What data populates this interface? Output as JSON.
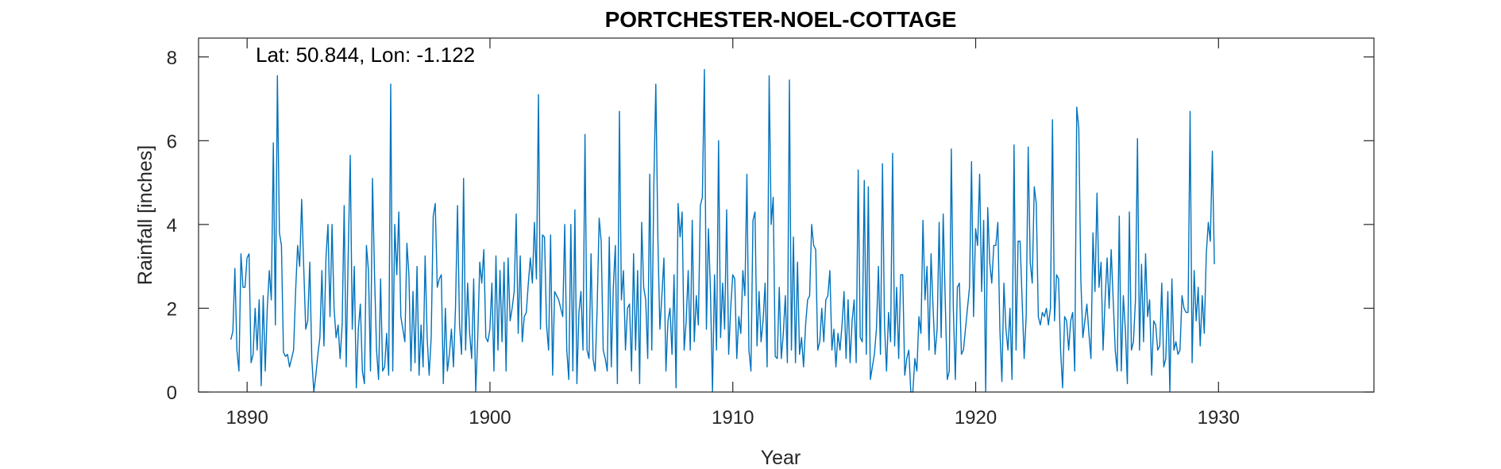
{
  "chart_data": {
    "type": "line",
    "title": "PORTCHESTER-NOEL-COTTAGE",
    "annotation": "Lat: 50.844, Lon: -1.122",
    "xlabel": "Year",
    "ylabel": "Rainfall [inches]",
    "xlim": [
      1888.0,
      1936.4
    ],
    "ylim": [
      0,
      8.45
    ],
    "x_ticks": [
      1890,
      1900,
      1910,
      1920,
      1930
    ],
    "y_ticks": [
      0,
      2,
      4,
      6,
      8
    ],
    "grid": false,
    "line_color": "#0072BD",
    "series": [
      {
        "x_start": 1889.33,
        "x_step_months": 1,
        "values": [
          1.25,
          1.45,
          2.95,
          1.0,
          0.5,
          3.3,
          2.5,
          2.5,
          3.2,
          3.3,
          0.7,
          0.9,
          2.0,
          1.0,
          2.2,
          0.15,
          2.3,
          0.5,
          2.0,
          2.9,
          2.2,
          5.95,
          1.6,
          7.55,
          3.8,
          3.5,
          0.95,
          0.85,
          0.9,
          0.6,
          0.8,
          1.0,
          2.4,
          3.5,
          3.0,
          4.6,
          3.0,
          1.5,
          1.7,
          3.1,
          0.8,
          0.0,
          0.4,
          0.9,
          1.3,
          2.9,
          1.1,
          3.2,
          4.0,
          1.8,
          4.0,
          2.0,
          1.3,
          1.6,
          0.8,
          1.6,
          4.45,
          0.6,
          3.3,
          5.65,
          1.5,
          3.0,
          0.1,
          1.5,
          2.1,
          0.5,
          0.2,
          3.5,
          2.9,
          0.5,
          5.1,
          2.8,
          1.0,
          0.3,
          2.7,
          0.5,
          0.6,
          1.4,
          0.4,
          7.35,
          0.5,
          4.0,
          2.8,
          4.3,
          1.8,
          1.5,
          1.2,
          3.55,
          2.8,
          0.5,
          2.4,
          0.7,
          3.0,
          0.4,
          1.6,
          0.6,
          3.25,
          1.3,
          0.4,
          1.3,
          4.2,
          4.5,
          2.5,
          2.7,
          2.8,
          0.2,
          2.0,
          0.5,
          0.9,
          1.5,
          0.6,
          2.0,
          4.45,
          1.6,
          0.9,
          5.1,
          1.0,
          2.6,
          1.4,
          0.8,
          2.7,
          0.0,
          1.3,
          3.1,
          2.6,
          3.4,
          1.3,
          1.2,
          1.5,
          2.6,
          0.5,
          3.25,
          1.0,
          2.9,
          1.2,
          3.1,
          0.5,
          3.2,
          1.7,
          2.0,
          2.4,
          4.25,
          1.4,
          3.25,
          1.2,
          1.8,
          1.9,
          2.6,
          3.2,
          2.6,
          4.05,
          2.7,
          7.1,
          1.5,
          3.75,
          3.7,
          1.6,
          1.0,
          3.75,
          0.4,
          2.4,
          2.3,
          2.2,
          2.0,
          1.8,
          4.0,
          1.0,
          0.3,
          4.0,
          0.5,
          4.35,
          0.2,
          1.9,
          2.4,
          1.0,
          6.15,
          1.0,
          0.8,
          3.3,
          0.8,
          0.5,
          2.0,
          4.15,
          3.6,
          1.0,
          0.8,
          0.5,
          3.7,
          0.6,
          2.5,
          3.5,
          0.2,
          6.7,
          2.2,
          2.9,
          1.0,
          2.0,
          2.1,
          0.5,
          3.3,
          1.0,
          2.9,
          0.2,
          4.05,
          2.5,
          2.2,
          0.8,
          5.2,
          1.0,
          4.9,
          7.35,
          3.7,
          1.5,
          2.3,
          3.2,
          0.5,
          1.7,
          2.0,
          0.9,
          2.8,
          0.1,
          4.5,
          3.7,
          4.3,
          1.0,
          1.7,
          2.9,
          1.0,
          4.1,
          1.2,
          2.3,
          1.6,
          4.45,
          4.65,
          7.7,
          1.5,
          3.9,
          2.4,
          0.0,
          2.8,
          1.0,
          6.0,
          1.3,
          2.6,
          1.5,
          4.35,
          0.9,
          2.0,
          2.8,
          2.7,
          0.8,
          1.8,
          1.4,
          2.9,
          2.3,
          5.2,
          1.0,
          0.5,
          4.1,
          4.3,
          1.1,
          2.4,
          1.2,
          1.7,
          2.6,
          0.6,
          7.55,
          4.0,
          4.65,
          0.85,
          0.8,
          2.5,
          0.8,
          1.4,
          2.3,
          0.7,
          7.45,
          1.0,
          3.7,
          0.7,
          3.1,
          0.9,
          1.3,
          0.6,
          1.6,
          2.2,
          2.3,
          4.0,
          3.5,
          3.4,
          1.0,
          1.2,
          2.0,
          1.2,
          2.2,
          2.3,
          2.9,
          1.0,
          1.5,
          0.6,
          1.4,
          1.0,
          1.6,
          2.4,
          0.8,
          2.2,
          0.7,
          1.7,
          2.2,
          0.7,
          5.3,
          1.3,
          1.2,
          5.05,
          0.9,
          4.9,
          0.3,
          0.6,
          0.9,
          1.5,
          3.0,
          0.9,
          5.45,
          1.6,
          0.5,
          1.9,
          1.2,
          5.7,
          1.1,
          2.5,
          0.8,
          2.8,
          2.8,
          0.4,
          0.8,
          1.0,
          0.0,
          0.0,
          0.8,
          0.5,
          1.8,
          1.4,
          4.1,
          2.2,
          3.0,
          1.0,
          3.3,
          2.0,
          0.9,
          1.5,
          4.05,
          1.3,
          4.25,
          2.2,
          0.3,
          0.5,
          5.8,
          2.0,
          0.3,
          2.5,
          2.6,
          0.9,
          1.0,
          1.5,
          2.0,
          2.5,
          5.5,
          1.8,
          3.9,
          3.5,
          5.2,
          2.4,
          4.1,
          0.0,
          4.4,
          3.1,
          2.6,
          3.5,
          3.5,
          4.05,
          1.5,
          0.25,
          2.6,
          1.5,
          1.0,
          2.0,
          0.3,
          5.9,
          1.0,
          3.6,
          3.6,
          2.2,
          0.8,
          1.8,
          5.85,
          3.1,
          2.6,
          4.9,
          4.5,
          1.8,
          1.6,
          1.9,
          1.8,
          2.0,
          1.6,
          2.0,
          6.5,
          1.7,
          2.8,
          2.7,
          1.0,
          0.1,
          1.8,
          1.7,
          1.0,
          1.7,
          1.9,
          0.5,
          6.8,
          6.3,
          2.7,
          1.3,
          1.7,
          2.1,
          1.4,
          0.8,
          3.8,
          2.4,
          4.75,
          2.5,
          3.1,
          1.0,
          2.2,
          3.2,
          2.0,
          3.4,
          2.2,
          1.0,
          0.5,
          4.2,
          0.5,
          2.3,
          1.5,
          0.2,
          4.3,
          1.0,
          1.2,
          2.2,
          6.05,
          1.0,
          3.05,
          1.2,
          3.3,
          1.8,
          2.2,
          0.4,
          1.7,
          1.6,
          1.0,
          1.1,
          2.6,
          0.6,
          0.8,
          2.4,
          0.0,
          2.7,
          1.0,
          1.2,
          0.9,
          1.0,
          2.3,
          2.0,
          1.9,
          1.9,
          6.7,
          0.7,
          2.9,
          1.7,
          2.5,
          1.1,
          2.3,
          1.4,
          3.3,
          4.05,
          3.6,
          5.75,
          3.05
        ]
      }
    ]
  }
}
